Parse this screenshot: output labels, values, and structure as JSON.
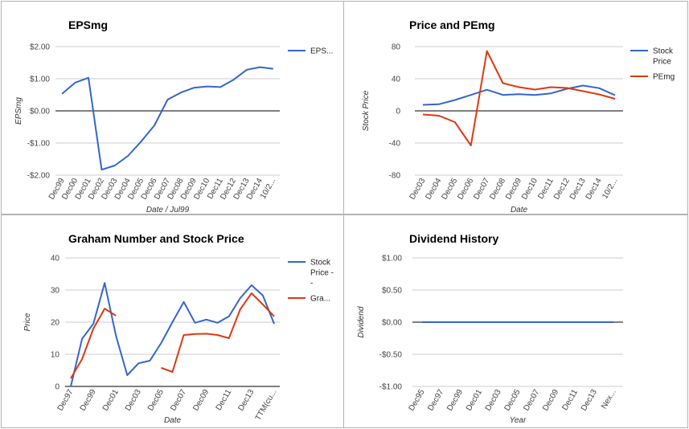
{
  "colors": {
    "blue": "#3366cc",
    "red": "#dc3912",
    "grid": "#cccccc",
    "zero": "#333333"
  },
  "chart_data": [
    {
      "type": "line",
      "title": "EPSmg",
      "xlabel": "Date / Jul99",
      "ylabel": "EPSmg",
      "ylim": [
        -2,
        2
      ],
      "yticks": [
        2,
        1,
        0,
        -1,
        -2
      ],
      "ytick_labels": [
        "$2.00",
        "$1.00",
        "$0.00",
        "-$1.00",
        "-$2.00"
      ],
      "categories": [
        "Dec99",
        "Dec00",
        "Dec01",
        "Dec02",
        "Dec03",
        "Dec04",
        "Dec05",
        "Dec06",
        "Dec07",
        "Dec08",
        "Dec09",
        "Dec10",
        "Dec11",
        "Dec12",
        "Dec13",
        "Dec14",
        "10/2..."
      ],
      "xtick_labels": [
        "Dec99",
        "Dec00",
        "Dec01",
        "Dec02",
        "Dec03",
        "Dec04",
        "Dec05",
        "Dec06",
        "Dec07",
        "Dec08",
        "Dec09",
        "Dec10",
        "Dec11",
        "Dec12",
        "Dec13",
        "Dec14",
        "10/2..."
      ],
      "grid": true,
      "legend_position": "right",
      "series": [
        {
          "name": "EPS...",
          "color": "#3366cc",
          "values": [
            0.53,
            0.88,
            1.03,
            -1.83,
            -1.7,
            -1.4,
            -0.95,
            -0.45,
            0.35,
            0.57,
            0.72,
            0.76,
            0.74,
            0.97,
            1.28,
            1.36,
            1.31
          ]
        }
      ]
    },
    {
      "type": "line",
      "title": "Price and PEmg",
      "xlabel": "Date",
      "ylabel": "Stock Price",
      "ylim": [
        -80,
        80
      ],
      "yticks": [
        80,
        40,
        0,
        -40,
        -80
      ],
      "ytick_labels": [
        "80",
        "40",
        "0",
        "-40",
        "-80"
      ],
      "categories": [
        "Dec03",
        "Dec04",
        "Dec05",
        "Dec06",
        "Dec07",
        "Dec08",
        "Dec09",
        "Dec10",
        "Dec11",
        "Dec12",
        "Dec13",
        "Dec14",
        "10/2..."
      ],
      "xtick_labels": [
        "Dec03",
        "Dec04",
        "Dec05",
        "Dec06",
        "Dec07",
        "Dec08",
        "Dec09",
        "Dec10",
        "Dec11",
        "Dec12",
        "Dec13",
        "Dec14",
        "10/2..."
      ],
      "grid": true,
      "legend_position": "right",
      "series": [
        {
          "name": "Stock Price",
          "legend_lines": [
            "Stock",
            "Price"
          ],
          "color": "#3366cc",
          "values": [
            7.5,
            8.2,
            13.5,
            19.8,
            26.3,
            19.8,
            20.8,
            19.8,
            21.8,
            27.5,
            31.5,
            28.3,
            19.5
          ]
        },
        {
          "name": "PEmg",
          "legend_lines": [
            "PEmg"
          ],
          "color": "#dc3912",
          "values": [
            -4.5,
            -6.0,
            -14.0,
            -43.0,
            74.5,
            34.5,
            29.5,
            26.5,
            29.5,
            28.5,
            24.5,
            20.5,
            15.0
          ]
        }
      ]
    },
    {
      "type": "line",
      "title": "Graham Number and Stock Price",
      "xlabel": "Date",
      "ylabel": "Price",
      "ylim": [
        0,
        40
      ],
      "yticks": [
        40,
        30,
        20,
        10,
        0
      ],
      "ytick_labels": [
        "40",
        "30",
        "20",
        "10",
        "0"
      ],
      "categories": [
        "Dec97",
        "Dec98",
        "Dec99",
        "Dec00",
        "Dec01",
        "Dec02",
        "Dec03",
        "Dec04",
        "Dec05",
        "Dec06",
        "Dec07",
        "Dec08",
        "Dec09",
        "Dec10",
        "Dec11",
        "Dec12",
        "Dec13",
        "Dec14",
        "TTM(cu..."
      ],
      "xtick_labels": [
        "Dec97",
        "Dec99",
        "Dec01",
        "Dec03",
        "Dec05",
        "Dec07",
        "Dec09",
        "Dec11",
        "Dec13",
        "TTM(cu..."
      ],
      "xtick_indices": [
        0,
        2,
        4,
        6,
        8,
        10,
        12,
        14,
        16,
        18
      ],
      "grid": true,
      "legend_position": "right",
      "series": [
        {
          "name": "Stock Price - -",
          "legend_lines": [
            "Stock",
            "Price -",
            "-"
          ],
          "color": "#3366cc",
          "values": [
            0,
            14.8,
            19.5,
            32.2,
            15.8,
            3.5,
            7.2,
            8.0,
            13.5,
            20.0,
            26.3,
            19.8,
            20.8,
            19.8,
            21.8,
            27.5,
            31.5,
            28.3,
            19.5
          ]
        },
        {
          "name": "Gra...",
          "legend_lines": [
            "Gra..."
          ],
          "color": "#dc3912",
          "values": [
            2.5,
            8.5,
            18.0,
            24.2,
            22.0,
            null,
            null,
            null,
            5.8,
            4.5,
            16.0,
            16.3,
            16.4,
            16.0,
            15.0,
            24.0,
            29.0,
            25.5,
            21.8
          ]
        }
      ]
    },
    {
      "type": "line",
      "title": "Dividend History",
      "xlabel": "Year",
      "ylabel": "Dividend",
      "ylim": [
        -1,
        1
      ],
      "yticks": [
        1,
        0.5,
        0,
        -0.5,
        -1
      ],
      "ytick_labels": [
        "$1.00",
        "$0.50",
        "$0.00",
        "-$0.50",
        "-$1.00"
      ],
      "categories": [
        "Dec95",
        "Dec97",
        "Dec99",
        "Dec01",
        "Dec03",
        "Dec05",
        "Dec07",
        "Dec09",
        "Dec11",
        "Dec13",
        "Nex..."
      ],
      "xtick_labels": [
        "Dec95",
        "Dec97",
        "Dec99",
        "Dec01",
        "Dec03",
        "Dec05",
        "Dec07",
        "Dec09",
        "Dec11",
        "Dec13",
        "Nex..."
      ],
      "grid": true,
      "series": [
        {
          "color": "#3366cc",
          "values": [
            0,
            0,
            0,
            0,
            0,
            0,
            0,
            0,
            0,
            0,
            0
          ]
        }
      ]
    }
  ]
}
